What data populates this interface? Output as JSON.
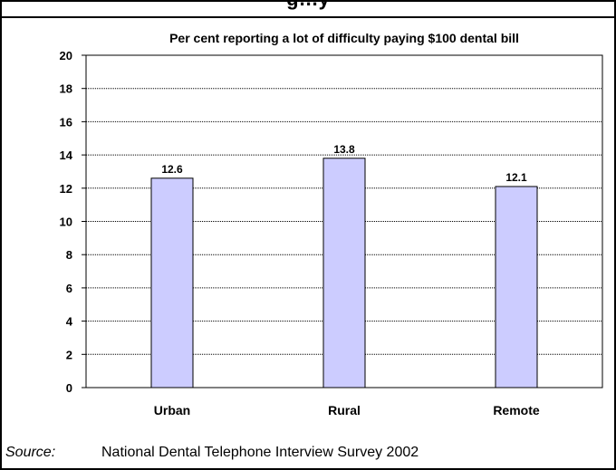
{
  "header": {
    "clipped_title": "g…y"
  },
  "chart_data": {
    "type": "bar",
    "title": "Per cent reporting a lot of difficulty paying $100 dental bill",
    "categories": [
      "Urban",
      "Rural",
      "Remote"
    ],
    "values": [
      12.6,
      13.8,
      12.1
    ],
    "data_labels": [
      "12.6",
      "13.8",
      "12.1"
    ],
    "ylim": [
      0,
      20
    ],
    "yticks": [
      0,
      2,
      4,
      6,
      8,
      10,
      12,
      14,
      16,
      18,
      20
    ],
    "grid": true,
    "bar_color": "#ccccff",
    "xlabel": "",
    "ylabel": ""
  },
  "footer": {
    "source_label": "Source:",
    "source_text": "National Dental Telephone Interview Survey 2002"
  }
}
